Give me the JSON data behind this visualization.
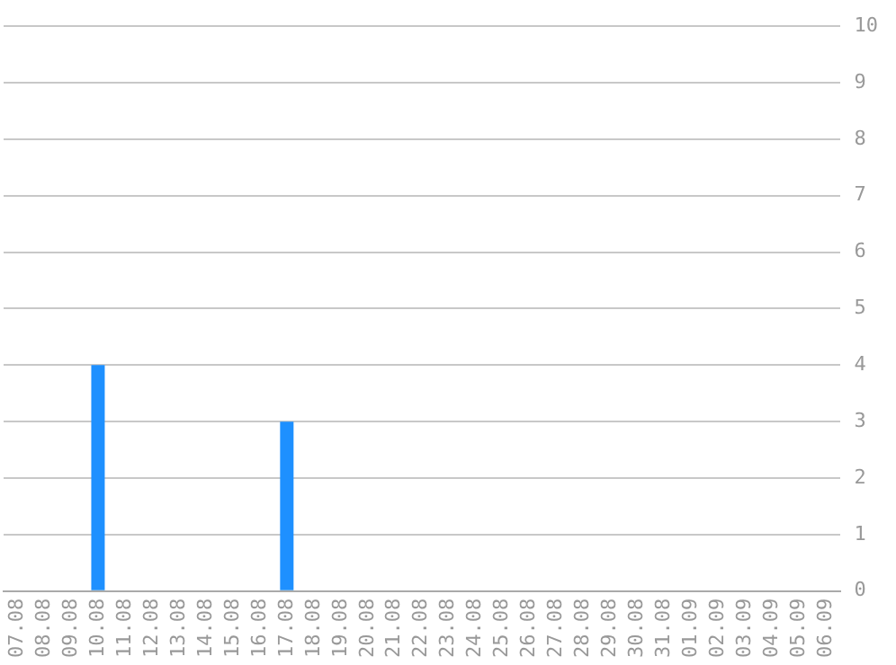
{
  "chart_data": {
    "type": "bar",
    "categories": [
      "07.08",
      "08.08",
      "09.08",
      "10.08",
      "11.08",
      "12.08",
      "13.08",
      "14.08",
      "15.08",
      "16.08",
      "17.08",
      "18.08",
      "19.08",
      "20.08",
      "21.08",
      "22.08",
      "23.08",
      "24.08",
      "25.08",
      "26.08",
      "27.08",
      "28.08",
      "29.08",
      "30.08",
      "31.08",
      "01.09",
      "02.09",
      "03.09",
      "04.09",
      "05.09",
      "06.09"
    ],
    "values": [
      0,
      0,
      0,
      4,
      0,
      0,
      0,
      0,
      0,
      0,
      3,
      0,
      0,
      0,
      0,
      0,
      0,
      0,
      0,
      0,
      0,
      0,
      0,
      0,
      0,
      0,
      0,
      0,
      0,
      0,
      0
    ],
    "color": "#1e90ff",
    "ylim": [
      0,
      10
    ],
    "yticks": [
      0,
      1,
      2,
      3,
      4,
      5,
      6,
      7,
      8,
      9,
      10
    ],
    "grid": "y",
    "legend": false
  }
}
